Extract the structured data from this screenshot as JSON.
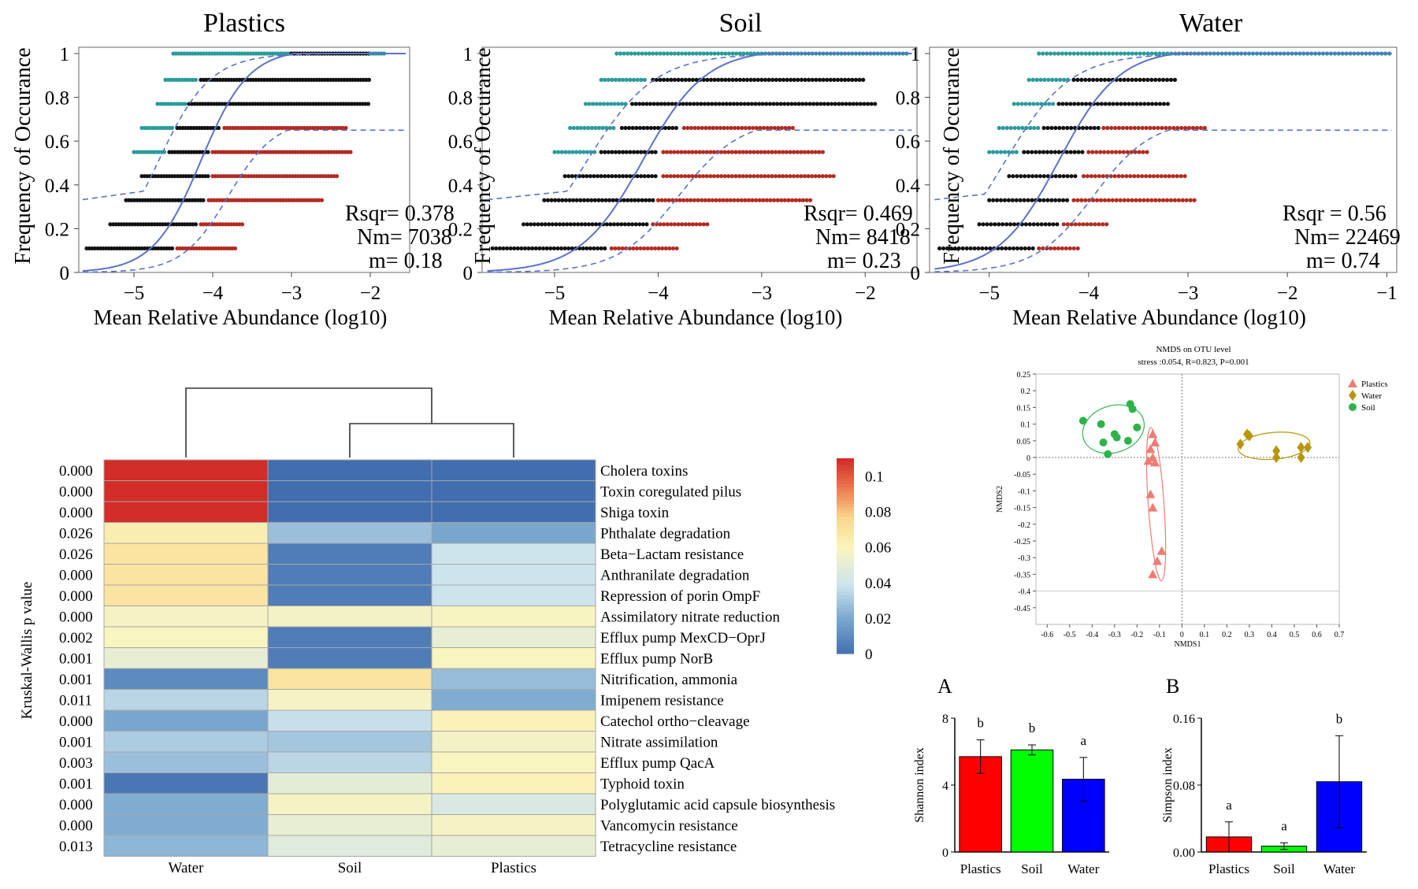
{
  "chart_data": [
    {
      "id": "ncm-plastics",
      "type": "scatter",
      "title": "Plastics",
      "xlabel": "Mean Relative Abundance (log10)",
      "ylabel": "Frequency of Occurance",
      "xlim": [
        -5.7,
        -1.5
      ],
      "ylim": [
        0,
        1
      ],
      "xticks": [
        "−5",
        "−4",
        "−3",
        "−2"
      ],
      "xtick_values": [
        -5,
        -4,
        -3,
        -2
      ],
      "yticks": [
        "0",
        "0.2",
        "0.4",
        "0.6",
        "0.8",
        "1"
      ],
      "ytick_values": [
        0,
        0.2,
        0.4,
        0.6,
        0.8,
        1
      ],
      "stats": [
        "Rsqr= 0.378",
        "Nm= 7038",
        "m= 0.18"
      ],
      "neutral_midpoint": -4.15,
      "upper_asymptote": 0.7,
      "rows": [
        {
          "y": 0.11,
          "black": [
            -5.6,
            -4.5
          ],
          "red": [
            -4.45,
            -3.7
          ]
        },
        {
          "y": 0.22,
          "black": [
            -5.3,
            -4.2
          ],
          "red": [
            -4.15,
            -3.6
          ]
        },
        {
          "y": 0.33,
          "black": [
            -5.1,
            -4.1
          ],
          "red": [
            -4.05,
            -2.6
          ]
        },
        {
          "y": 0.44,
          "black": [
            -4.9,
            -4.05
          ],
          "red": [
            -4.0,
            -2.4
          ]
        },
        {
          "y": 0.55,
          "cyan": [
            -5.0,
            -4.6
          ],
          "black": [
            -4.55,
            -4.05
          ],
          "red": [
            -4.0,
            -2.25
          ]
        },
        {
          "y": 0.66,
          "cyan": [
            -4.9,
            -4.5
          ],
          "black": [
            -4.45,
            -3.9
          ],
          "red": [
            -3.85,
            -2.3
          ]
        },
        {
          "y": 0.77,
          "cyan": [
            -4.7,
            -4.35
          ],
          "black": [
            -4.3,
            -2.0
          ]
        },
        {
          "y": 0.88,
          "cyan": [
            -4.6,
            -4.2
          ],
          "black": [
            -4.15,
            -2.0
          ]
        },
        {
          "y": 1.0,
          "cyan": [
            -4.5,
            -3.0
          ],
          "black": [
            -3.0,
            -2.0
          ],
          "cyan2": [
            -2.0,
            -1.8
          ]
        }
      ]
    },
    {
      "id": "ncm-soil",
      "type": "scatter",
      "title": "Soil",
      "xlabel": "Mean Relative Abundance (log10)",
      "ylabel": "Frequency of Occurance",
      "xlim": [
        -5.7,
        -1.5
      ],
      "ylim": [
        0,
        1
      ],
      "xticks": [
        "−5",
        "−4",
        "−3",
        "−2"
      ],
      "xtick_values": [
        -5,
        -4,
        -3,
        -2
      ],
      "yticks": [
        "0",
        "0.2",
        "0.4",
        "0.6",
        "0.8",
        "1"
      ],
      "ytick_values": [
        0,
        0.2,
        0.4,
        0.6,
        0.8,
        1
      ],
      "stats": [
        "Rsqr= 0.469",
        "Nm= 8418",
        "m= 0.23"
      ],
      "neutral_midpoint": -4.15,
      "upper_asymptote": 0.7,
      "rows": [
        {
          "y": 0.11,
          "black": [
            -5.6,
            -4.5
          ],
          "red": [
            -4.45,
            -3.8
          ]
        },
        {
          "y": 0.22,
          "black": [
            -5.3,
            -4.1
          ],
          "red": [
            -4.05,
            -3.5
          ]
        },
        {
          "y": 0.33,
          "black": [
            -5.1,
            -4.05
          ],
          "red": [
            -4.0,
            -2.5
          ]
        },
        {
          "y": 0.44,
          "black": [
            -4.9,
            -4.0
          ],
          "red": [
            -3.95,
            -2.3
          ]
        },
        {
          "y": 0.55,
          "cyan": [
            -5.0,
            -4.6
          ],
          "black": [
            -4.55,
            -4.0
          ],
          "red": [
            -3.95,
            -2.4
          ]
        },
        {
          "y": 0.66,
          "cyan": [
            -4.85,
            -4.4
          ],
          "black": [
            -4.35,
            -3.8
          ],
          "red": [
            -3.75,
            -2.7
          ]
        },
        {
          "y": 0.77,
          "cyan": [
            -4.7,
            -4.3
          ],
          "black": [
            -4.25,
            -1.9
          ]
        },
        {
          "y": 0.88,
          "cyan": [
            -4.55,
            -4.1
          ],
          "black": [
            -4.05,
            -2.0
          ]
        },
        {
          "y": 1.0,
          "cyan": [
            -4.4,
            -1.6
          ]
        }
      ]
    },
    {
      "id": "ncm-water",
      "type": "scatter",
      "title": "Water",
      "xlabel": "Mean Relative Abundance (log10)",
      "ylabel": "Frequency of Occurance",
      "xlim": [
        -5.6,
        -0.9
      ],
      "ylim": [
        0,
        1
      ],
      "xticks": [
        "−5",
        "−4",
        "−3",
        "−2",
        "−1"
      ],
      "xtick_values": [
        -5,
        -4,
        -3,
        -2,
        -1
      ],
      "yticks": [
        "0",
        "0.2",
        "0.4",
        "0.6",
        "0.8",
        "1"
      ],
      "ytick_values": [
        0,
        0.2,
        0.4,
        0.6,
        0.8,
        1
      ],
      "stats": [
        "Rsqr = 0.56",
        "Nm= 22469",
        "m= 0.74"
      ],
      "neutral_midpoint": -4.3,
      "upper_asymptote": 0.7,
      "rows": [
        {
          "y": 0.11,
          "black": [
            -5.5,
            -4.55
          ],
          "red": [
            -4.5,
            -4.1
          ]
        },
        {
          "y": 0.22,
          "black": [
            -5.1,
            -4.3
          ],
          "red": [
            -4.25,
            -3.8
          ]
        },
        {
          "y": 0.33,
          "black": [
            -5.0,
            -4.2
          ],
          "red": [
            -4.15,
            -2.9
          ]
        },
        {
          "y": 0.44,
          "black": [
            -4.8,
            -4.1
          ],
          "red": [
            -4.05,
            -3.0
          ]
        },
        {
          "y": 0.55,
          "cyan": [
            -5.0,
            -4.7
          ],
          "black": [
            -4.65,
            -4.05
          ],
          "red": [
            -4.0,
            -3.4
          ]
        },
        {
          "y": 0.66,
          "cyan": [
            -4.9,
            -4.5
          ],
          "black": [
            -4.45,
            -3.9
          ],
          "red": [
            -3.85,
            -2.8
          ]
        },
        {
          "y": 0.77,
          "cyan": [
            -4.75,
            -4.35
          ],
          "black": [
            -4.3,
            -3.2
          ]
        },
        {
          "y": 0.88,
          "cyan": [
            -4.6,
            -4.2
          ],
          "black": [
            -4.15,
            -3.1
          ]
        },
        {
          "y": 1.0,
          "cyan": [
            -4.5,
            -0.95
          ]
        }
      ]
    },
    {
      "id": "heatmap",
      "type": "heatmap",
      "columns": [
        "Water",
        "Soil",
        "Plastics"
      ],
      "ylabel": "Kruskal-Wallis p value",
      "colorbar": {
        "min": 0,
        "max": 0.11,
        "ticks": [
          "0.1",
          "0.08",
          "0.06",
          "0.04",
          "0.02",
          "0"
        ],
        "tick_values": [
          0.1,
          0.08,
          0.06,
          0.04,
          0.02,
          0
        ]
      },
      "rows": [
        {
          "name": "Cholera toxins",
          "p": "0.000",
          "values": [
            0.11,
            0.0,
            0.0
          ]
        },
        {
          "name": "Toxin coregulated pilus",
          "p": "0.000",
          "values": [
            0.11,
            0.0,
            0.0
          ]
        },
        {
          "name": "Shiga toxin",
          "p": "0.000",
          "values": [
            0.11,
            0.0,
            0.0
          ]
        },
        {
          "name": "Phthalate degradation",
          "p": "0.026",
          "values": [
            0.065,
            0.028,
            0.02
          ]
        },
        {
          "name": "Beta−Lactam resistance",
          "p": "0.026",
          "values": [
            0.07,
            0.005,
            0.04
          ]
        },
        {
          "name": "Anthranilate degradation",
          "p": "0.000",
          "values": [
            0.07,
            0.005,
            0.04
          ]
        },
        {
          "name": "Repression of porin OmpF",
          "p": "0.000",
          "values": [
            0.07,
            0.005,
            0.04
          ]
        },
        {
          "name": "Assimilatory nitrate reduction",
          "p": "0.000",
          "values": [
            0.058,
            0.057,
            0.059
          ]
        },
        {
          "name": "Efflux pump MexCD−OprJ",
          "p": "0.002",
          "values": [
            0.06,
            0.005,
            0.052
          ]
        },
        {
          "name": "Efflux pump NorB",
          "p": "0.001",
          "values": [
            0.052,
            0.005,
            0.06
          ]
        },
        {
          "name": "Nitrification, ammonia",
          "p": "0.001",
          "values": [
            0.01,
            0.07,
            0.027
          ]
        },
        {
          "name": "Imipenem resistance",
          "p": "0.011",
          "values": [
            0.035,
            0.058,
            0.022
          ]
        },
        {
          "name": "Catechol ortho−cleavage",
          "p": "0.000",
          "values": [
            0.02,
            0.038,
            0.062
          ]
        },
        {
          "name": "Nitrate assimilation",
          "p": "0.001",
          "values": [
            0.032,
            0.03,
            0.057
          ]
        },
        {
          "name": "Efflux pump QacA",
          "p": "0.003",
          "values": [
            0.028,
            0.035,
            0.06
          ]
        },
        {
          "name": "Typhoid toxin",
          "p": "0.001",
          "values": [
            0.003,
            0.05,
            0.062
          ]
        },
        {
          "name": "Polyglutamic acid capsule biosynthesis",
          "p": "0.000",
          "values": [
            0.022,
            0.058,
            0.045
          ]
        },
        {
          "name": "Vancomycin resistance",
          "p": "0.000",
          "values": [
            0.022,
            0.052,
            0.058
          ]
        },
        {
          "name": "Tetracycline resistance",
          "p": "0.013",
          "values": [
            0.025,
            0.048,
            0.052
          ]
        }
      ]
    },
    {
      "id": "nmds",
      "type": "scatter",
      "title": "NMDS on OTU level",
      "subtitle": "stress :0.054, R=0.823, P=0.001",
      "xlabel": "NMDS1",
      "ylabel": "NMDS2",
      "xlim": [
        -0.65,
        0.7
      ],
      "ylim": [
        -0.5,
        0.25
      ],
      "xticks": [
        "-0.6",
        "-0.5",
        "-0.4",
        "-0.3",
        "-0.2",
        "-0.1",
        "0",
        "0.1",
        "0.2",
        "0.3",
        "0.4",
        "0.5",
        "0.6",
        "0.7"
      ],
      "xtick_values": [
        -0.6,
        -0.5,
        -0.4,
        -0.3,
        -0.2,
        -0.1,
        0,
        0.1,
        0.2,
        0.3,
        0.4,
        0.5,
        0.6,
        0.7
      ],
      "yticks": [
        "0.25",
        "0.2",
        "0.15",
        "0.1",
        "0.05",
        "0",
        "-0.05",
        "-0.1",
        "-0.15",
        "-0.2",
        "-0.25",
        "-0.3",
        "-0.35",
        "-0.4",
        "-0.45"
      ],
      "ytick_values": [
        0.25,
        0.2,
        0.15,
        0.1,
        0.05,
        0,
        -0.05,
        -0.1,
        -0.15,
        -0.2,
        -0.25,
        -0.3,
        -0.35,
        -0.4,
        -0.45
      ],
      "legend_position": "top-right",
      "series": [
        {
          "name": "Plastics",
          "color": "#ef7b72",
          "marker": "triangle",
          "points": [
            [
              -0.13,
              0.07
            ],
            [
              -0.12,
              0.045
            ],
            [
              -0.14,
              0.025
            ],
            [
              -0.15,
              -0.01
            ],
            [
              -0.12,
              -0.015
            ],
            [
              -0.13,
              0.0
            ],
            [
              -0.14,
              -0.11
            ],
            [
              -0.13,
              -0.15
            ],
            [
              -0.09,
              -0.28
            ],
            [
              -0.11,
              -0.31
            ],
            [
              -0.13,
              -0.35
            ]
          ]
        },
        {
          "name": "Water",
          "color": "#b8960c",
          "marker": "diamond",
          "points": [
            [
              0.26,
              0.04
            ],
            [
              0.29,
              0.07
            ],
            [
              0.3,
              0.065
            ],
            [
              0.42,
              0.02
            ],
            [
              0.42,
              0.0
            ],
            [
              0.53,
              0.03
            ],
            [
              0.53,
              0.0
            ],
            [
              0.56,
              0.03
            ]
          ]
        },
        {
          "name": "Soil",
          "color": "#2db34a",
          "marker": "circle",
          "points": [
            [
              -0.44,
              0.11
            ],
            [
              -0.36,
              0.1
            ],
            [
              -0.23,
              0.16
            ],
            [
              -0.22,
              0.145
            ],
            [
              -0.2,
              0.09
            ],
            [
              -0.3,
              0.07
            ],
            [
              -0.29,
              0.06
            ],
            [
              -0.24,
              0.05
            ],
            [
              -0.35,
              0.045
            ],
            [
              -0.33,
              0.01
            ]
          ]
        }
      ]
    },
    {
      "id": "shannon",
      "type": "bar",
      "panel_letter": "A",
      "categories": [
        "Plastics",
        "Soil",
        "Water"
      ],
      "values": [
        5.7,
        6.1,
        4.35
      ],
      "errors": [
        1.0,
        0.3,
        1.3
      ],
      "significance": [
        "b",
        "b",
        "a"
      ],
      "ylabel": "Shannon index",
      "ylim": [
        0,
        8
      ],
      "yticks": [
        "0",
        "4",
        "8"
      ],
      "ytick_values": [
        0,
        4,
        8
      ],
      "colors": [
        "#ff0000",
        "#00ff00",
        "#0000ff"
      ]
    },
    {
      "id": "simpson",
      "type": "bar",
      "panel_letter": "B",
      "categories": [
        "Plastics",
        "Soil",
        "Water"
      ],
      "values": [
        0.018,
        0.007,
        0.084
      ],
      "errors": [
        0.018,
        0.004,
        0.055
      ],
      "significance": [
        "a",
        "a",
        "b"
      ],
      "ylabel": "Simpson index",
      "ylim": [
        0,
        0.16
      ],
      "yticks": [
        "0.00",
        "0.08",
        "0.16"
      ],
      "ytick_values": [
        0,
        0.08,
        0.16
      ],
      "colors": [
        "#ff0000",
        "#00ff00",
        "#0000ff"
      ]
    }
  ]
}
